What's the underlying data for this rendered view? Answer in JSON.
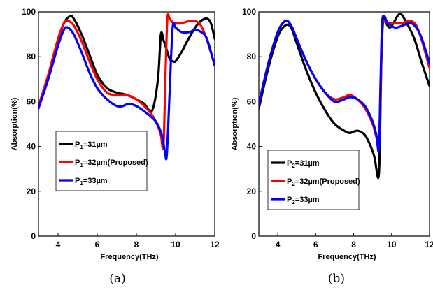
{
  "chart_data": [
    {
      "type": "line",
      "panel_label": "(a)",
      "xlabel": "Frequency(THz)",
      "ylabel": "Absorption(%)",
      "xlim": [
        3,
        12
      ],
      "ylim": [
        0,
        100
      ],
      "xticks": [
        4,
        6,
        8,
        10,
        12
      ],
      "yticks": [
        0,
        20,
        40,
        60,
        80,
        100
      ],
      "legend_position": "lower-left",
      "series": [
        {
          "name": "P1=31µm",
          "legend": {
            "base": "P",
            "sub": "1",
            "rest": "=31µm"
          },
          "color": "#000000",
          "x": [
            3.0,
            3.5,
            4.0,
            4.3,
            4.6,
            4.8,
            5.2,
            5.6,
            6.0,
            6.5,
            7.0,
            7.5,
            8.0,
            8.4,
            8.8,
            9.1,
            9.25,
            9.4,
            9.55,
            9.7,
            9.85,
            10.0,
            10.3,
            10.6,
            11.0,
            11.3,
            11.6,
            11.8,
            12.0
          ],
          "y": [
            57,
            71,
            87,
            95,
            98,
            97,
            90,
            81,
            72,
            66,
            64,
            63,
            61,
            59,
            56,
            70,
            90,
            87,
            83,
            79,
            78,
            78,
            82,
            87,
            93,
            96,
            97,
            95,
            88
          ]
        },
        {
          "name": "P1=32µm(Proposed)",
          "legend": {
            "base": "P",
            "sub": "1",
            "rest": "=32µm(Proposed)"
          },
          "color": "#ff0000",
          "x": [
            3.0,
            3.5,
            4.0,
            4.3,
            4.5,
            4.8,
            5.2,
            5.6,
            6.0,
            6.5,
            7.0,
            7.5,
            8.0,
            8.4,
            8.8,
            9.1,
            9.25,
            9.38,
            9.48,
            9.58,
            9.7,
            9.9,
            10.3,
            10.8,
            11.2,
            11.5,
            11.8,
            12.0
          ],
          "y": [
            58,
            72,
            88,
            95,
            96,
            94,
            87,
            78,
            70,
            64,
            63,
            63,
            61,
            58,
            54,
            49,
            45,
            40,
            70,
            97,
            97,
            95,
            95,
            96,
            95,
            90,
            82,
            76
          ]
        },
        {
          "name": "P1=33µm",
          "legend": {
            "base": "P",
            "sub": "1",
            "rest": "=33µm"
          },
          "color": "#0000ff",
          "x": [
            3.0,
            3.5,
            4.0,
            4.3,
            4.5,
            4.8,
            5.2,
            5.6,
            6.0,
            6.5,
            7.0,
            7.3,
            7.6,
            8.0,
            8.5,
            9.0,
            9.3,
            9.45,
            9.55,
            9.7,
            9.85,
            10.0,
            10.3,
            10.7,
            11.0,
            11.3,
            11.6,
            12.0
          ],
          "y": [
            57,
            70,
            85,
            92,
            93,
            90,
            82,
            73,
            66,
            61,
            58,
            58,
            59,
            58,
            55,
            51,
            45,
            38,
            36,
            65,
            93,
            93,
            91,
            91,
            92,
            91,
            88,
            76
          ]
        }
      ]
    },
    {
      "type": "line",
      "panel_label": "(b)",
      "xlabel": "Frequency(THz)",
      "ylabel": "Absorption(%)",
      "xlim": [
        3,
        12
      ],
      "ylim": [
        0,
        100
      ],
      "xticks": [
        4,
        6,
        8,
        10,
        12
      ],
      "yticks": [
        0,
        20,
        40,
        60,
        80,
        100
      ],
      "legend_position": "lower-left",
      "series": [
        {
          "name": "P2=31µm",
          "legend": {
            "base": "P",
            "sub": "2",
            "rest": "=31µm"
          },
          "color": "#000000",
          "x": [
            3.0,
            3.5,
            4.0,
            4.4,
            4.7,
            5.0,
            5.5,
            6.0,
            6.5,
            7.0,
            7.5,
            7.8,
            8.2,
            8.6,
            8.9,
            9.1,
            9.3,
            9.38,
            9.45,
            9.55,
            9.7,
            9.9,
            10.1,
            10.3,
            10.5,
            10.8,
            11.2,
            11.6,
            12.0
          ],
          "y": [
            57,
            75,
            89,
            94,
            93,
            86,
            74,
            64,
            56,
            50,
            47,
            46,
            47,
            45,
            40,
            35,
            26,
            40,
            75,
            96,
            95,
            93,
            95,
            98,
            99,
            95,
            88,
            77,
            67
          ]
        },
        {
          "name": "P2=32µm(Proposed)",
          "legend": {
            "base": "P",
            "sub": "2",
            "rest": "=32µm(Proposed)"
          },
          "color": "#ff0000",
          "x": [
            3.0,
            3.5,
            4.0,
            4.4,
            4.7,
            5.0,
            5.5,
            6.0,
            6.5,
            7.0,
            7.5,
            7.8,
            8.2,
            8.6,
            9.0,
            9.2,
            9.33,
            9.42,
            9.5,
            9.6,
            9.8,
            10.2,
            10.6,
            11.0,
            11.3,
            11.6,
            12.0
          ],
          "y": [
            59,
            77,
            91,
            96,
            94,
            88,
            78,
            70,
            64,
            61,
            62,
            63,
            61,
            57,
            50,
            44,
            40,
            65,
            93,
            96,
            95,
            95,
            95,
            96,
            94,
            87,
            75
          ]
        },
        {
          "name": "P2=33µm",
          "legend": {
            "base": "P",
            "sub": "2",
            "rest": "=33µm"
          },
          "color": "#0000ff",
          "x": [
            3.0,
            3.5,
            4.0,
            4.4,
            4.7,
            5.0,
            5.5,
            6.0,
            6.5,
            7.0,
            7.5,
            7.8,
            8.2,
            8.6,
            9.0,
            9.2,
            9.33,
            9.42,
            9.5,
            9.62,
            9.8,
            10.2,
            10.6,
            11.0,
            11.3,
            11.6,
            12.0
          ],
          "y": [
            59,
            77,
            91,
            96,
            94,
            88,
            78,
            70,
            64,
            60,
            61,
            62,
            61,
            58,
            51,
            45,
            39,
            70,
            95,
            98,
            95,
            93,
            94,
            95,
            93,
            88,
            77
          ]
        }
      ]
    }
  ]
}
